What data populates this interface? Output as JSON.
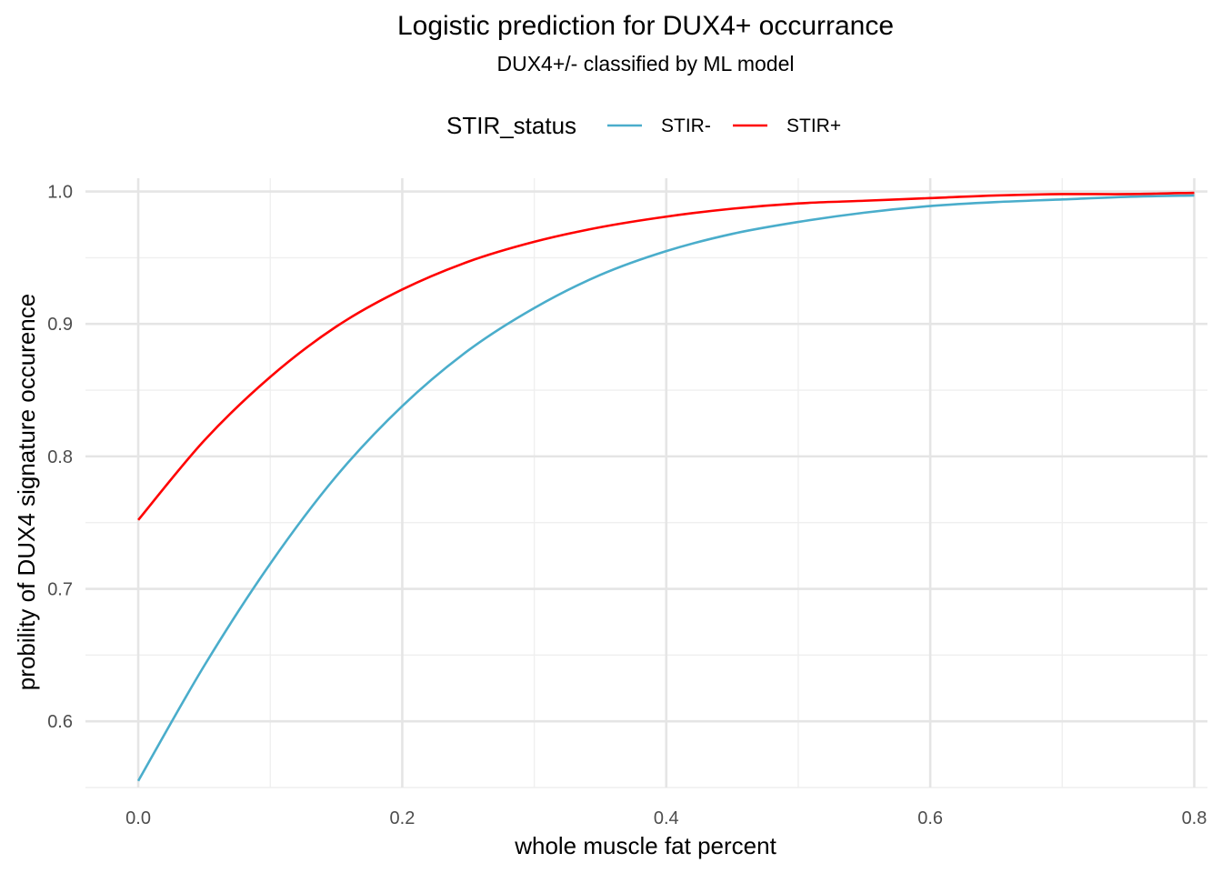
{
  "chart_data": {
    "type": "line",
    "title": "Logistic prediction for DUX4+ occurrance",
    "subtitle": "DUX4+/- classified by ML model",
    "xlabel": "whole muscle fat percent",
    "ylabel": "probility of DUX4 signature occurence",
    "xlim": [
      -0.04,
      0.81
    ],
    "ylim": [
      0.55,
      1.01
    ],
    "x_ticks": [
      0.0,
      0.2,
      0.4,
      0.6,
      0.8
    ],
    "x_tick_labels": [
      "0.0",
      "0.2",
      "0.4",
      "0.6",
      "0.8"
    ],
    "x_minor_ticks": [
      0.1,
      0.3,
      0.5,
      0.7
    ],
    "y_ticks": [
      0.6,
      0.7,
      0.8,
      0.9,
      1.0
    ],
    "y_tick_labels": [
      "0.6",
      "0.7",
      "0.8",
      "0.9",
      "1.0"
    ],
    "y_minor_ticks": [
      0.55,
      0.65,
      0.75,
      0.85,
      0.95
    ],
    "grid": true,
    "legend": {
      "title": "STIR_status",
      "position": "top"
    },
    "x": [
      0.0,
      0.05,
      0.1,
      0.15,
      0.2,
      0.25,
      0.3,
      0.35,
      0.4,
      0.45,
      0.5,
      0.55,
      0.6,
      0.65,
      0.7,
      0.75,
      0.8
    ],
    "series": [
      {
        "name": "STIR-",
        "color": "#4AADCB",
        "values": [
          0.555,
          0.642,
          0.719,
          0.785,
          0.838,
          0.88,
          0.912,
          0.937,
          0.955,
          0.968,
          0.977,
          0.984,
          0.989,
          0.992,
          0.994,
          0.996,
          0.997
        ]
      },
      {
        "name": "STIR+",
        "color": "#FF0000",
        "values": [
          0.752,
          0.812,
          0.86,
          0.898,
          0.926,
          0.947,
          0.962,
          0.973,
          0.981,
          0.987,
          0.991,
          0.993,
          0.995,
          0.997,
          0.998,
          0.998,
          0.999
        ]
      }
    ]
  }
}
